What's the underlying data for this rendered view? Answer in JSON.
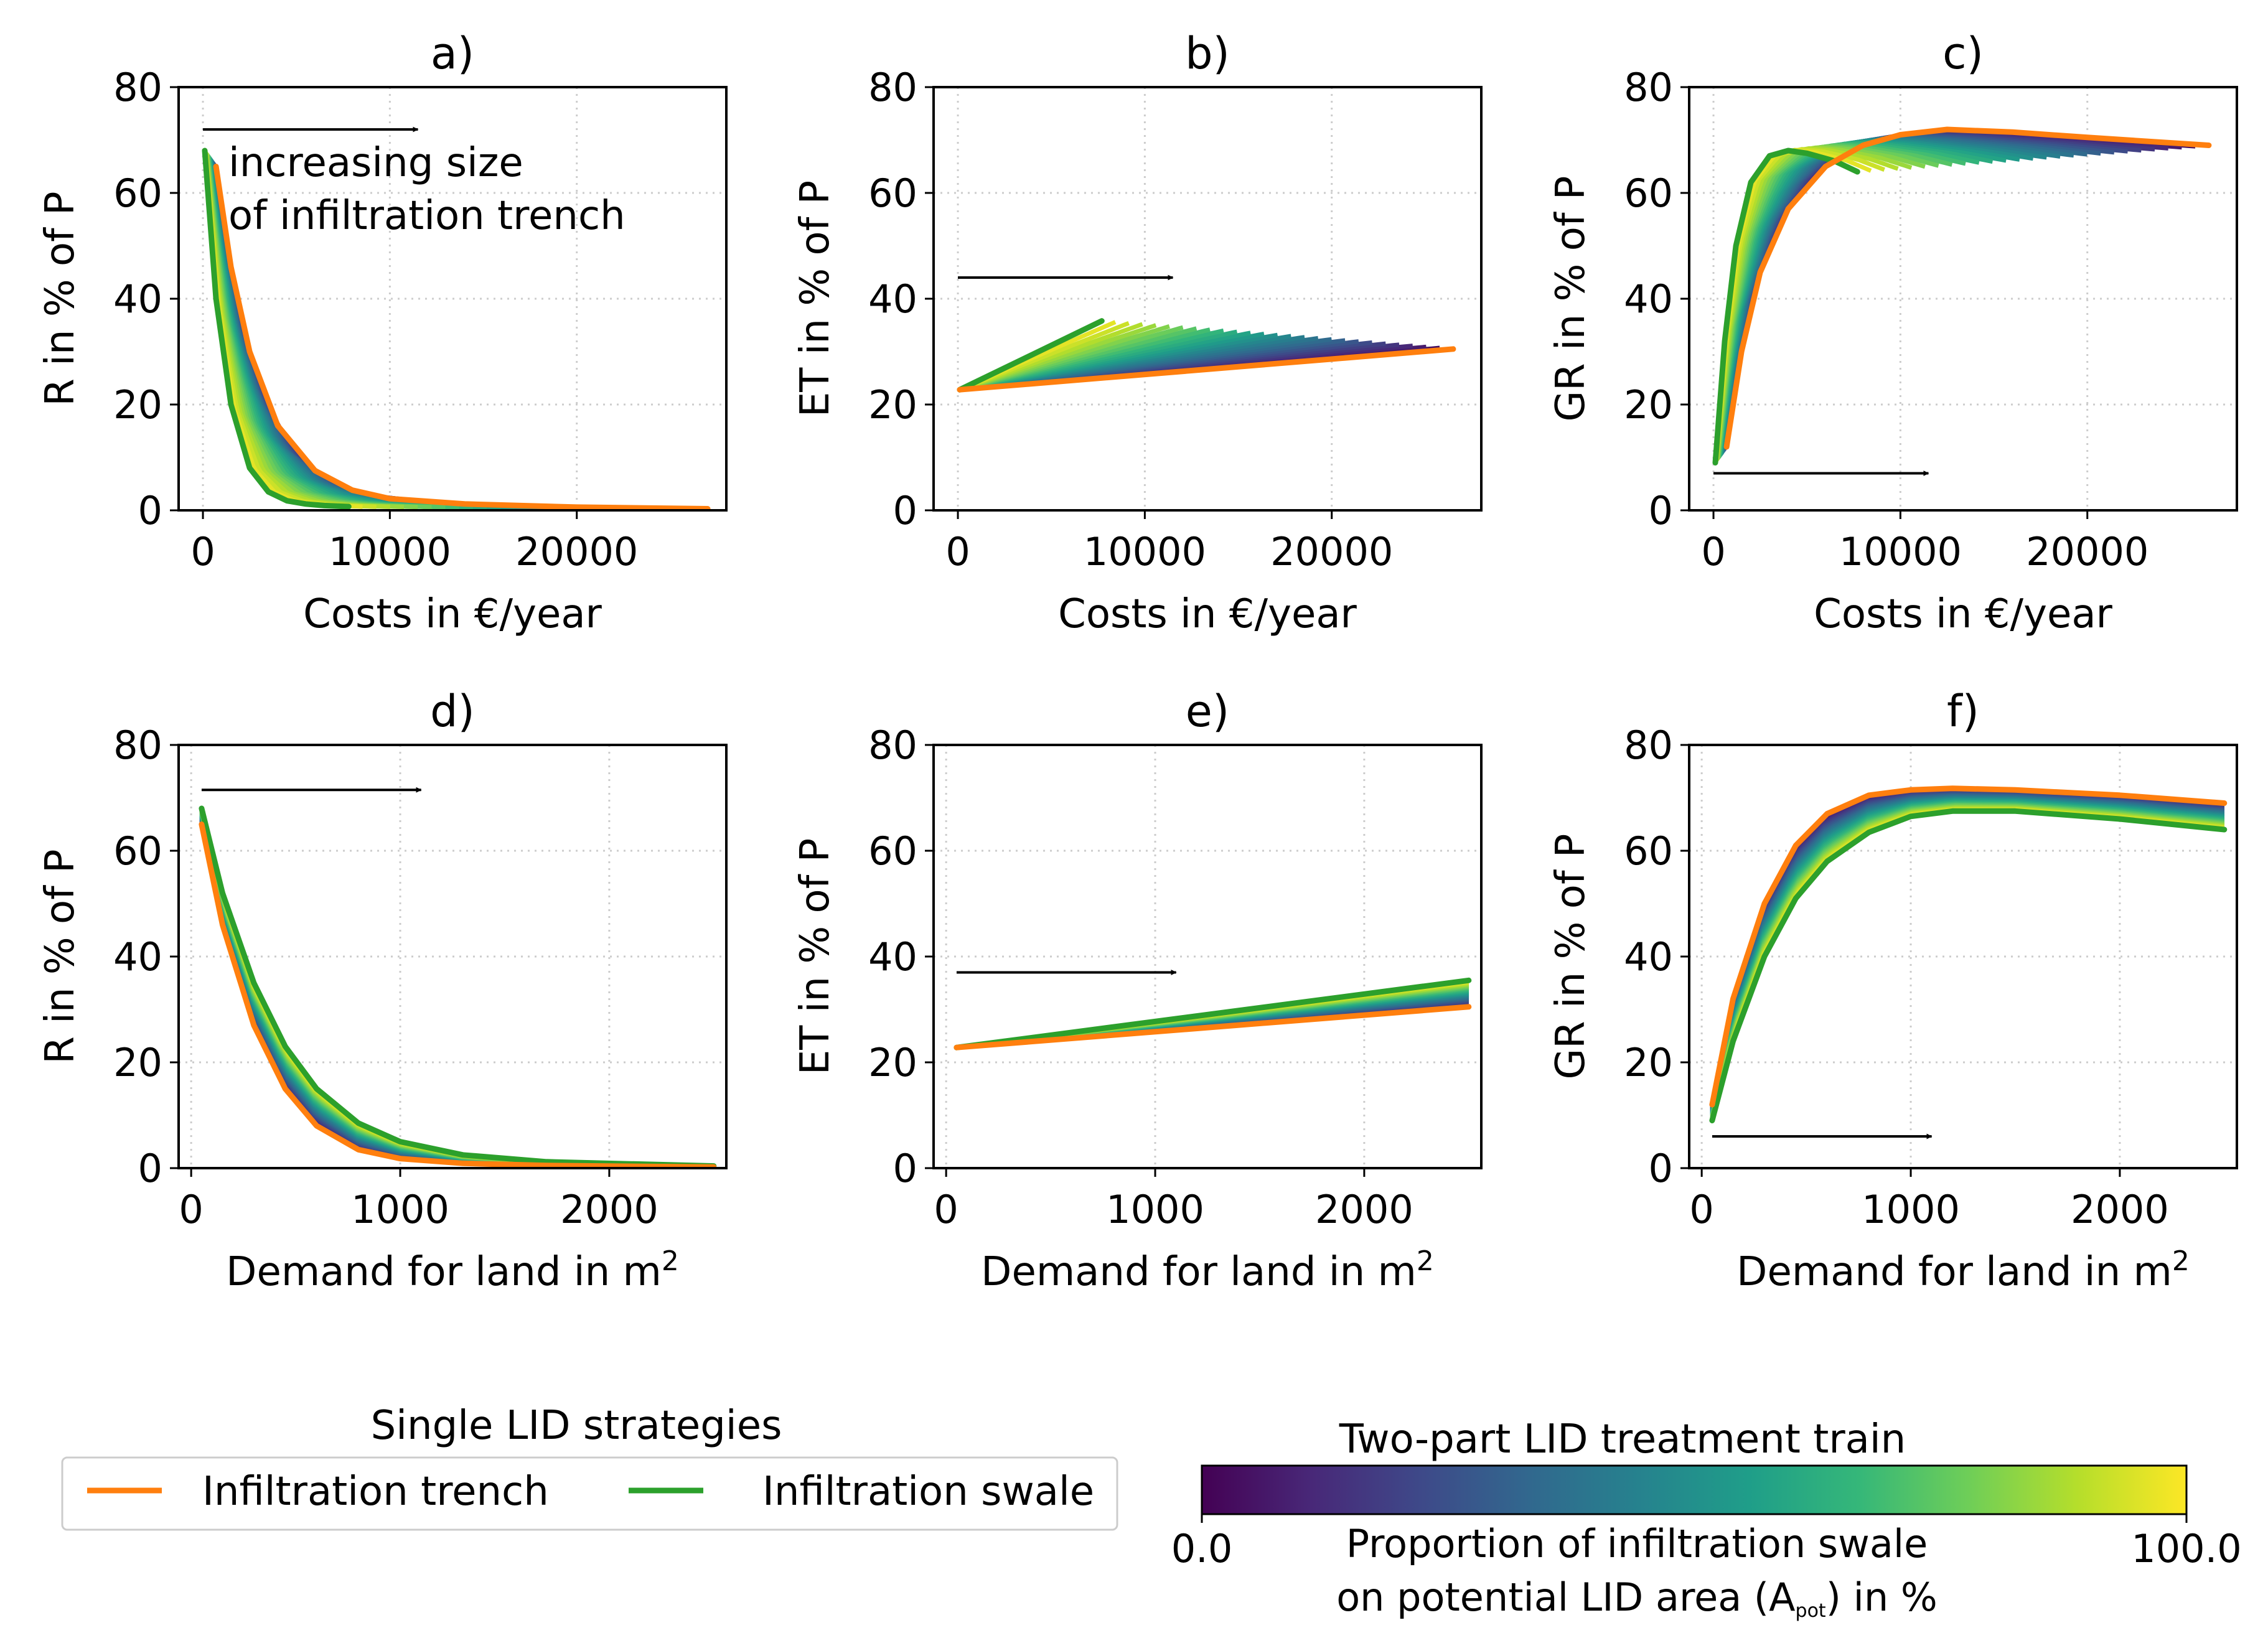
{
  "chart_data": [
    {
      "id": "a",
      "type": "line",
      "title": "a)",
      "xlabel": "Costs in €/year",
      "ylabel": "R in % of P",
      "xlim": [
        -1300,
        28000
      ],
      "ylim": [
        0,
        80
      ],
      "xticks": [
        0,
        10000,
        20000
      ],
      "xtick_labels": [
        "0",
        "10000",
        "20000"
      ],
      "yticks": [
        0,
        20,
        40,
        60,
        80
      ],
      "ytick_labels": [
        "0",
        "20",
        "40",
        "60",
        "80"
      ],
      "grid": true,
      "annotation": [
        "increasing size",
        "of infiltration trench"
      ],
      "arrow": {
        "from": [
          0,
          72
        ],
        "to": [
          11500,
          72
        ]
      },
      "series": [
        {
          "name": "Infiltration trench",
          "color": "#ff7f0e",
          "x": [
            700,
            1500,
            2500,
            4000,
            6000,
            8000,
            10000,
            14000,
            20000,
            27000
          ],
          "y": [
            65,
            46,
            30,
            16,
            7.5,
            3.8,
            2.2,
            1.2,
            0.6,
            0.3
          ]
        },
        {
          "name": "Infiltration swale",
          "color": "#2ca02c",
          "x": [
            100,
            700,
            1500,
            2500,
            3500,
            4500,
            5500,
            6500,
            7800
          ],
          "y": [
            68,
            40,
            20,
            8,
            3.5,
            1.8,
            1.2,
            0.9,
            0.7
          ]
        }
      ]
    },
    {
      "id": "b",
      "type": "line",
      "title": "b)",
      "xlabel": "Costs in €/year",
      "ylabel": "ET in % of P",
      "xlim": [
        -1300,
        28000
      ],
      "ylim": [
        0,
        80
      ],
      "xticks": [
        0,
        10000,
        20000
      ],
      "xtick_labels": [
        "0",
        "10000",
        "20000"
      ],
      "yticks": [
        0,
        20,
        40,
        60,
        80
      ],
      "ytick_labels": [
        "0",
        "20",
        "40",
        "60",
        "80"
      ],
      "grid": true,
      "arrow": {
        "from": [
          0,
          44
        ],
        "to": [
          11500,
          44
        ]
      },
      "series": [
        {
          "name": "Infiltration trench",
          "color": "#ff7f0e",
          "x": [
            100,
            26500
          ],
          "y": [
            22.8,
            30.5
          ]
        },
        {
          "name": "Infiltration swale",
          "color": "#2ca02c",
          "x": [
            100,
            7700
          ],
          "y": [
            22.8,
            35.8
          ]
        }
      ]
    },
    {
      "id": "c",
      "type": "line",
      "title": "c)",
      "xlabel": "Costs in €/year",
      "ylabel": "GR in % of P",
      "xlim": [
        -1300,
        28000
      ],
      "ylim": [
        0,
        80
      ],
      "xticks": [
        0,
        10000,
        20000
      ],
      "xtick_labels": [
        "0",
        "10000",
        "20000"
      ],
      "yticks": [
        0,
        20,
        40,
        60,
        80
      ],
      "ytick_labels": [
        "0",
        "20",
        "40",
        "60",
        "80"
      ],
      "grid": true,
      "arrow": {
        "from": [
          0,
          7
        ],
        "to": [
          11500,
          7
        ]
      },
      "series": [
        {
          "name": "Infiltration trench",
          "color": "#ff7f0e",
          "x": [
            700,
            1500,
            2500,
            4000,
            6000,
            8000,
            10000,
            12500,
            16000,
            20000,
            26500
          ],
          "y": [
            12,
            30,
            45,
            57,
            65,
            69,
            71,
            72,
            71.5,
            70.5,
            69
          ]
        },
        {
          "name": "Infiltration swale",
          "color": "#2ca02c",
          "x": [
            100,
            600,
            1200,
            2000,
            3000,
            4000,
            5000,
            6500,
            7700
          ],
          "y": [
            9,
            32,
            50,
            62,
            67,
            68,
            67.5,
            66,
            64
          ]
        }
      ]
    },
    {
      "id": "d",
      "type": "line",
      "title": "d)",
      "xlabel": "Demand for land in m²",
      "ylabel": "R in % of P",
      "xlim": [
        -60,
        2560
      ],
      "ylim": [
        0,
        80
      ],
      "xticks": [
        0,
        1000,
        2000
      ],
      "xtick_labels": [
        "0",
        "1000",
        "2000"
      ],
      "yticks": [
        0,
        20,
        40,
        60,
        80
      ],
      "ytick_labels": [
        "0",
        "20",
        "40",
        "60",
        "80"
      ],
      "grid": true,
      "arrow": {
        "from": [
          50,
          71.5
        ],
        "to": [
          1100,
          71.5
        ]
      },
      "series": [
        {
          "name": "Infiltration trench",
          "color": "#ff7f0e",
          "x": [
            50,
            150,
            300,
            450,
            600,
            800,
            1000,
            1300,
            1700,
            2500
          ],
          "y": [
            65,
            46,
            27,
            15,
            8,
            3.5,
            1.8,
            0.9,
            0.5,
            0.2
          ]
        },
        {
          "name": "Infiltration swale",
          "color": "#2ca02c",
          "x": [
            50,
            150,
            300,
            450,
            600,
            800,
            1000,
            1300,
            1700,
            2500
          ],
          "y": [
            68,
            52,
            35,
            23,
            15,
            8.5,
            5,
            2.5,
            1.2,
            0.4
          ]
        }
      ]
    },
    {
      "id": "e",
      "type": "line",
      "title": "e)",
      "xlabel": "Demand for land in m²",
      "ylabel": "ET in % of P",
      "xlim": [
        -60,
        2560
      ],
      "ylim": [
        0,
        80
      ],
      "xticks": [
        0,
        1000,
        2000
      ],
      "xtick_labels": [
        "0",
        "1000",
        "2000"
      ],
      "yticks": [
        0,
        20,
        40,
        60,
        80
      ],
      "ytick_labels": [
        "0",
        "20",
        "40",
        "60",
        "80"
      ],
      "grid": true,
      "arrow": {
        "from": [
          50,
          37
        ],
        "to": [
          1100,
          37
        ]
      },
      "series": [
        {
          "name": "Infiltration trench",
          "color": "#ff7f0e",
          "x": [
            50,
            2500
          ],
          "y": [
            22.8,
            30.5
          ]
        },
        {
          "name": "Infiltration swale",
          "color": "#2ca02c",
          "x": [
            50,
            2500
          ],
          "y": [
            22.8,
            35.5
          ]
        }
      ]
    },
    {
      "id": "f",
      "type": "line",
      "title": "f)",
      "xlabel": "Demand for land in m²",
      "ylabel": "GR in % of P",
      "xlim": [
        -60,
        2560
      ],
      "ylim": [
        0,
        80
      ],
      "xticks": [
        0,
        1000,
        2000
      ],
      "xtick_labels": [
        "0",
        "1000",
        "2000"
      ],
      "yticks": [
        0,
        20,
        40,
        60,
        80
      ],
      "ytick_labels": [
        "0",
        "20",
        "40",
        "60",
        "80"
      ],
      "grid": true,
      "arrow": {
        "from": [
          50,
          6
        ],
        "to": [
          1100,
          6
        ]
      },
      "series": [
        {
          "name": "Infiltration trench",
          "color": "#ff7f0e",
          "x": [
            50,
            150,
            300,
            450,
            600,
            800,
            1000,
            1200,
            1500,
            2000,
            2500
          ],
          "y": [
            12,
            32,
            50,
            61,
            67,
            70.5,
            71.5,
            71.8,
            71.5,
            70.5,
            69
          ]
        },
        {
          "name": "Infiltration swale",
          "color": "#2ca02c",
          "x": [
            50,
            150,
            300,
            450,
            600,
            800,
            1000,
            1200,
            1500,
            2000,
            2500
          ],
          "y": [
            9,
            24,
            40,
            51,
            58,
            63.5,
            66.5,
            67.5,
            67.5,
            66,
            64
          ]
        }
      ]
    }
  ],
  "legend": {
    "title": "Single LID strategies",
    "items": [
      {
        "label": "Infiltration trench",
        "color": "#ff7f0e"
      },
      {
        "label": "Infiltration swale",
        "color": "#2ca02c"
      }
    ]
  },
  "colorbar": {
    "title": "Two-part LID treatment train",
    "min": 0.0,
    "max": 100.0,
    "min_label": "0.0",
    "max_label": "100.0",
    "label_line1": "Proportion of infiltration swale",
    "label_line2_pre": "on potential LID area (A",
    "label_sub": "pot",
    "label_line2_post": ") in %",
    "colors": [
      "#440154",
      "#482878",
      "#3e4989",
      "#31688e",
      "#26828e",
      "#1f9e89",
      "#35b779",
      "#6ece58",
      "#b5de2b",
      "#fde725"
    ]
  }
}
